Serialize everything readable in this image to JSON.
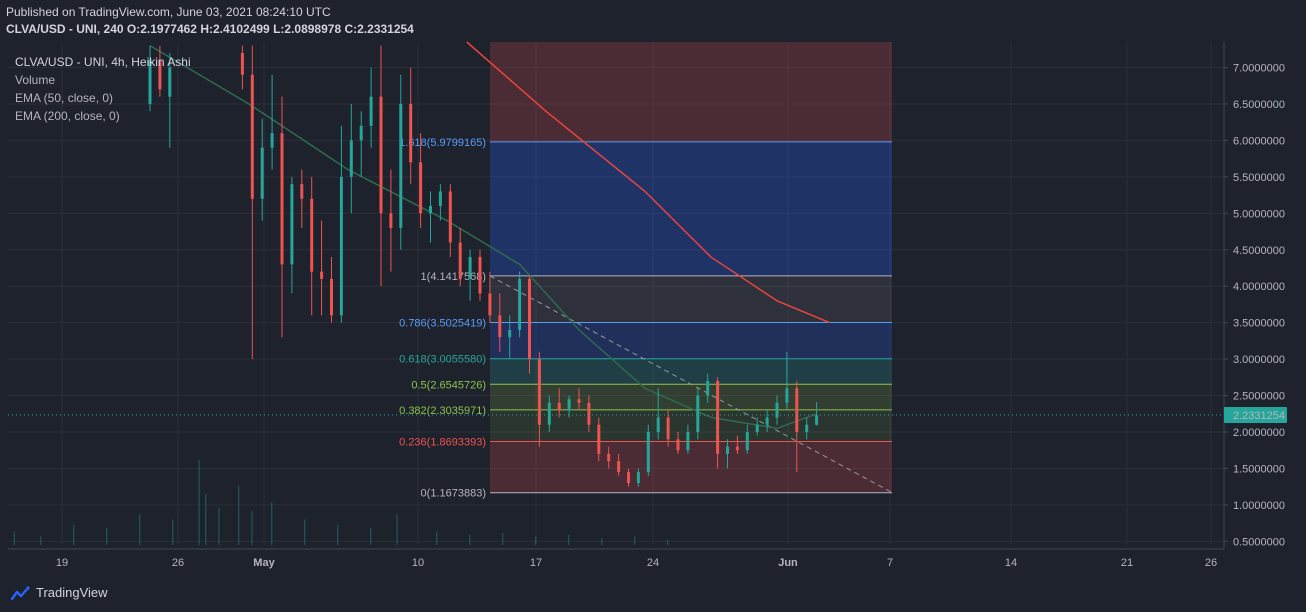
{
  "header": {
    "published": "Published on TradingView.com, June 03, 2021 08:24:10 UTC",
    "symbol_line": "CLVA/USD - UNI, 240",
    "o": "O:2.1977462",
    "h": "H:2.4102499",
    "l": "L:2.0898978",
    "c": "C:2.2331254"
  },
  "legend": {
    "title": "CLVA/USD - UNI, 4h, Heikin Ashi",
    "items": [
      "Volume",
      "EMA (50, close, 0)",
      "EMA (200, close, 0)"
    ]
  },
  "brand": {
    "name": "TradingView"
  },
  "colors": {
    "background": "#1e222d",
    "up": "#26a69a",
    "down": "#ef5350",
    "ema50": "#2e6b4e",
    "ema200": "#e8453c",
    "price_tag": "#26a69a",
    "grid": "#2a2e39"
  },
  "chart_data": {
    "type": "candlestick",
    "variant": "Heikin Ashi",
    "timeframe": "4h",
    "x_ticks": [
      "19",
      "26",
      "May",
      "10",
      "17",
      "24",
      "Jun",
      "7",
      "14",
      "21",
      "26"
    ],
    "y_ticks": [
      "7.0000000",
      "6.5000000",
      "6.0000000",
      "5.5000000",
      "5.0000000",
      "4.5000000",
      "4.0000000",
      "3.5000000",
      "3.0000000",
      "2.5000000",
      "2.0000000",
      "1.5000000",
      "1.0000000",
      "0.5000000"
    ],
    "y_ticks_values": [
      7.0,
      6.5,
      6.0,
      5.5,
      5.0,
      4.5,
      4.0,
      3.5,
      3.0,
      2.5,
      2.0,
      1.5,
      1.0,
      0.5
    ],
    "ylim": [
      0.45,
      7.35
    ],
    "current_price": 2.2331254,
    "current_price_label": "2.2331254",
    "fibonacci": [
      {
        "label": "1.618(5.9799165)",
        "level": 5.9799165,
        "color": "#5b9cf6"
      },
      {
        "label": "1(4.1417568)",
        "level": 4.1417568,
        "color": "#b2b5be"
      },
      {
        "label": "0.786(3.5025419)",
        "level": 3.5025419,
        "color": "#5b9cf6"
      },
      {
        "label": "0.618(3.0055580)",
        "level": 3.005558,
        "color": "#26a69a"
      },
      {
        "label": "0.5(2.6545726)",
        "level": 2.6545726,
        "color": "#8bc34a"
      },
      {
        "label": "0.382(2.3035971)",
        "level": 2.3035971,
        "color": "#8bc34a"
      },
      {
        "label": "0.236(1.8693393)",
        "level": 1.8693393,
        "color": "#ef5350"
      },
      {
        "label": "0(1.1673883)",
        "level": 1.1673883,
        "color": "#b2b5be"
      }
    ],
    "trend_line": {
      "from": 4.14,
      "to": 1.17
    },
    "top_zone_level": 7.35,
    "candles": [
      [
        0,
        6.5,
        7.3,
        6.4,
        7.1
      ],
      [
        3,
        7.1,
        7.3,
        6.6,
        6.7
      ],
      [
        6,
        6.6,
        7.2,
        5.9,
        7.0
      ],
      [
        28,
        7.2,
        7.3,
        6.7,
        6.9
      ],
      [
        31,
        6.9,
        7.3,
        3.0,
        5.2
      ],
      [
        34,
        5.2,
        6.3,
        4.9,
        5.9
      ],
      [
        37,
        5.9,
        6.9,
        5.6,
        6.1
      ],
      [
        40,
        6.1,
        6.6,
        3.3,
        4.3
      ],
      [
        43,
        4.3,
        5.5,
        3.9,
        5.4
      ],
      [
        46,
        5.4,
        5.6,
        4.8,
        5.2
      ],
      [
        49,
        5.2,
        5.5,
        3.6,
        4.2
      ],
      [
        52,
        4.2,
        4.9,
        3.6,
        4.1
      ],
      [
        55,
        4.1,
        4.4,
        3.5,
        3.6
      ],
      [
        58,
        3.6,
        6.2,
        3.5,
        5.5
      ],
      [
        61,
        5.5,
        6.5,
        5.0,
        6.0
      ],
      [
        64,
        6.0,
        6.4,
        5.5,
        6.2
      ],
      [
        67,
        6.2,
        7.0,
        5.9,
        6.6
      ],
      [
        70,
        6.6,
        7.3,
        4.0,
        5.0
      ],
      [
        73,
        5.0,
        5.6,
        4.2,
        4.8
      ],
      [
        76,
        4.8,
        6.9,
        4.5,
        6.5
      ],
      [
        79,
        6.5,
        7.0,
        5.4,
        5.7
      ],
      [
        82,
        5.7,
        6.1,
        4.8,
        5.0
      ],
      [
        85,
        5.0,
        5.3,
        4.6,
        5.1
      ],
      [
        88,
        5.1,
        5.4,
        4.9,
        5.3
      ],
      [
        91,
        5.3,
        5.4,
        4.4,
        4.6
      ],
      [
        94,
        4.6,
        4.8,
        4.0,
        4.1
      ],
      [
        97,
        4.1,
        4.5,
        3.8,
        4.4
      ],
      [
        100,
        4.4,
        4.5,
        3.8,
        3.9
      ],
      [
        103,
        3.9,
        4.2,
        3.5,
        3.6
      ],
      [
        106,
        3.6,
        3.9,
        3.1,
        3.3
      ],
      [
        109,
        3.3,
        3.6,
        3.0,
        3.4
      ],
      [
        112,
        3.4,
        4.2,
        3.3,
        4.1
      ],
      [
        115,
        4.1,
        4.15,
        2.8,
        3.0
      ],
      [
        118,
        3.0,
        3.1,
        1.8,
        2.1
      ],
      [
        121,
        2.1,
        2.5,
        2.0,
        2.4
      ],
      [
        124,
        2.4,
        2.6,
        2.2,
        2.3
      ],
      [
        127,
        2.3,
        2.5,
        2.2,
        2.45
      ],
      [
        130,
        2.45,
        2.6,
        2.3,
        2.4
      ],
      [
        133,
        2.4,
        2.5,
        2.0,
        2.1
      ],
      [
        136,
        2.1,
        2.2,
        1.6,
        1.7
      ],
      [
        139,
        1.7,
        1.8,
        1.5,
        1.6
      ],
      [
        142,
        1.6,
        1.7,
        1.4,
        1.45
      ],
      [
        145,
        1.45,
        1.5,
        1.25,
        1.3
      ],
      [
        148,
        1.3,
        1.5,
        1.25,
        1.45
      ],
      [
        151,
        1.45,
        2.1,
        1.4,
        2.0
      ],
      [
        154,
        2.0,
        2.6,
        1.9,
        2.2
      ],
      [
        157,
        2.2,
        2.3,
        1.8,
        1.9
      ],
      [
        160,
        1.9,
        2.0,
        1.7,
        1.75
      ],
      [
        163,
        1.75,
        2.1,
        1.7,
        2.0
      ],
      [
        166,
        2.0,
        2.6,
        1.9,
        2.5
      ],
      [
        169,
        2.5,
        2.8,
        2.4,
        2.7
      ],
      [
        172,
        2.7,
        2.75,
        1.5,
        1.7
      ],
      [
        175,
        1.7,
        1.9,
        1.5,
        1.8
      ],
      [
        178,
        1.8,
        1.95,
        1.7,
        1.75
      ],
      [
        181,
        1.75,
        2.1,
        1.7,
        2.0
      ],
      [
        184,
        2.0,
        2.2,
        1.95,
        2.1
      ],
      [
        187,
        2.1,
        2.3,
        2.0,
        2.2
      ],
      [
        190,
        2.2,
        2.5,
        2.1,
        2.4
      ],
      [
        193,
        2.4,
        3.1,
        2.3,
        2.6
      ],
      [
        196,
        2.6,
        2.7,
        1.45,
        2.0
      ],
      [
        199,
        2.0,
        2.2,
        1.9,
        2.1
      ],
      [
        202,
        2.1,
        2.41,
        2.09,
        2.23
      ]
    ],
    "ema50": [
      [
        0,
        7.3
      ],
      [
        30,
        6.5
      ],
      [
        60,
        5.6
      ],
      [
        90,
        4.9
      ],
      [
        112,
        4.3
      ],
      [
        130,
        3.4
      ],
      [
        150,
        2.6
      ],
      [
        170,
        2.2
      ],
      [
        190,
        2.05
      ],
      [
        202,
        2.25
      ]
    ],
    "ema200": [
      [
        96,
        7.35
      ],
      [
        120,
        6.4
      ],
      [
        150,
        5.3
      ],
      [
        170,
        4.4
      ],
      [
        190,
        3.8
      ],
      [
        206,
        3.5
      ]
    ],
    "volume": [
      [
        2,
        0.08
      ],
      [
        10,
        0.05
      ],
      [
        20,
        0.12
      ],
      [
        30,
        0.1
      ],
      [
        40,
        0.18
      ],
      [
        50,
        0.15
      ],
      [
        58,
        0.5
      ],
      [
        60,
        0.3
      ],
      [
        64,
        0.22
      ],
      [
        70,
        0.35
      ],
      [
        74,
        0.2
      ],
      [
        80,
        0.25
      ],
      [
        90,
        0.15
      ],
      [
        100,
        0.12
      ],
      [
        110,
        0.1
      ],
      [
        118,
        0.18
      ],
      [
        130,
        0.08
      ],
      [
        140,
        0.06
      ],
      [
        150,
        0.07
      ],
      [
        160,
        0.05
      ],
      [
        170,
        0.06
      ],
      [
        180,
        0.04
      ],
      [
        190,
        0.05
      ],
      [
        200,
        0.03
      ]
    ]
  }
}
